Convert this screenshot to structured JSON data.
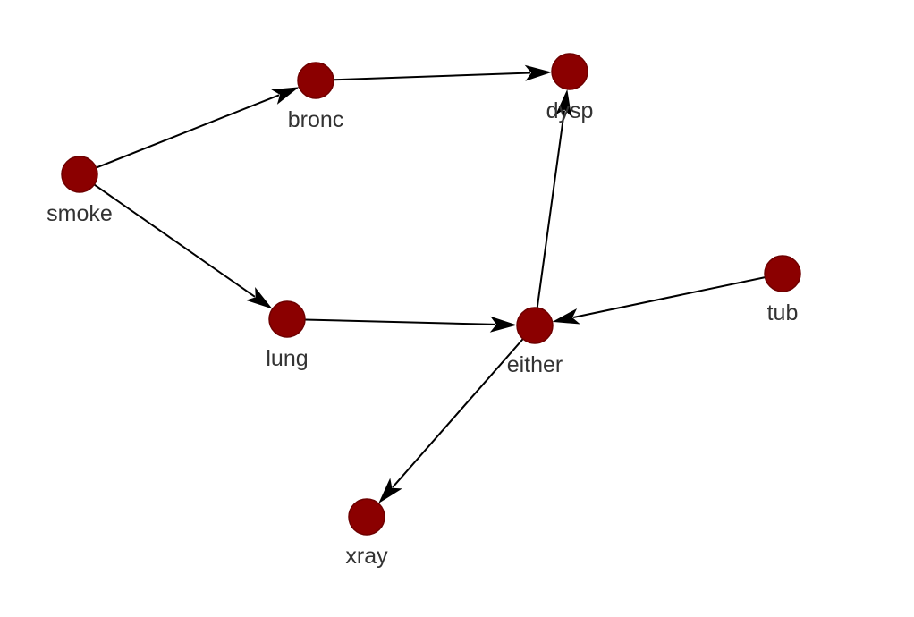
{
  "diagram": {
    "type": "directed-graph",
    "node_fill": "#8b0000",
    "node_stroke": "#6e0000",
    "edge_color": "#000000",
    "label_color": "#333333",
    "nodes": [
      {
        "id": "smoke",
        "label": "smoke"
      },
      {
        "id": "bronc",
        "label": "bronc"
      },
      {
        "id": "dysp",
        "label": "dysp"
      },
      {
        "id": "lung",
        "label": "lung"
      },
      {
        "id": "either",
        "label": "either"
      },
      {
        "id": "tub",
        "label": "tub"
      },
      {
        "id": "xray",
        "label": "xray"
      }
    ],
    "edges": [
      {
        "from": "smoke",
        "to": "bronc"
      },
      {
        "from": "smoke",
        "to": "lung"
      },
      {
        "from": "bronc",
        "to": "dysp"
      },
      {
        "from": "lung",
        "to": "either"
      },
      {
        "from": "tub",
        "to": "either"
      },
      {
        "from": "either",
        "to": "dysp"
      },
      {
        "from": "either",
        "to": "xray"
      }
    ]
  }
}
